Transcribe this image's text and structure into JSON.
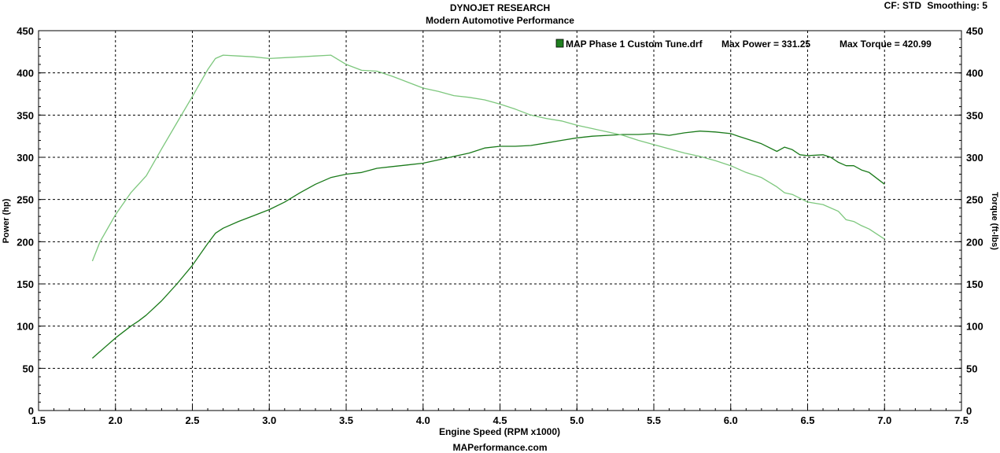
{
  "header": {
    "title": "DYNOJET RESEARCH",
    "subtitle": "Modern Automotive Performance",
    "cf_label": "CF: STD",
    "smoothing_label": "Smoothing: 5"
  },
  "footer": {
    "text": "MAPerformance.com"
  },
  "colors": {
    "power": "#1a7a1a",
    "torque": "#7dc77d",
    "legend_swatch": "#1f7f1f"
  },
  "legend": {
    "file": "MAP Phase 1 Custom Tune.drf",
    "max_power": "Max Power = 331.25",
    "max_torque": "Max Torque = 420.99"
  },
  "chart_data": {
    "type": "line",
    "xlabel": "Engine Speed (RPM x1000)",
    "ylabel": "Power (hp)",
    "y2label": "Torque (ft-lbs)",
    "xlim": [
      1.5,
      7.5
    ],
    "ylim": [
      0,
      450
    ],
    "y2lim": [
      0,
      450
    ],
    "xticks": [
      "1.5",
      "2.0",
      "2.5",
      "3.0",
      "3.5",
      "4.0",
      "4.5",
      "5.0",
      "5.5",
      "6.0",
      "6.5",
      "7.0",
      "7.5"
    ],
    "yticks": [
      "0",
      "50",
      "100",
      "150",
      "200",
      "250",
      "300",
      "350",
      "400",
      "450"
    ],
    "grid": true,
    "legend_position": "top-right",
    "series": [
      {
        "name": "MAP Phase 1 Custom Tune.drf",
        "quantity": "power",
        "x": [
          1.85,
          1.9,
          2.0,
          2.1,
          2.15,
          2.2,
          2.3,
          2.4,
          2.5,
          2.6,
          2.65,
          2.7,
          2.8,
          2.9,
          3.0,
          3.1,
          3.2,
          3.3,
          3.4,
          3.5,
          3.6,
          3.7,
          3.8,
          3.9,
          4.0,
          4.1,
          4.2,
          4.3,
          4.4,
          4.5,
          4.6,
          4.7,
          4.8,
          4.9,
          5.0,
          5.1,
          5.2,
          5.3,
          5.4,
          5.5,
          5.6,
          5.7,
          5.8,
          5.9,
          6.0,
          6.05,
          6.1,
          6.2,
          6.3,
          6.35,
          6.4,
          6.45,
          6.5,
          6.6,
          6.65,
          6.7,
          6.75,
          6.8,
          6.85,
          6.9,
          7.0
        ],
        "values": [
          62,
          70,
          86,
          100,
          106,
          113,
          130,
          150,
          172,
          198,
          210,
          216,
          224,
          231,
          238,
          247,
          258,
          268,
          276,
          280,
          282,
          287,
          289,
          291,
          293,
          297,
          301,
          305,
          311,
          313,
          313,
          314,
          317,
          320,
          323,
          325,
          326,
          327,
          327,
          328,
          326,
          329,
          331,
          330,
          328,
          325,
          322,
          316,
          307,
          312,
          309,
          303,
          302,
          303,
          300,
          294,
          290,
          290,
          285,
          282,
          268
        ]
      },
      {
        "name": "MAP Phase 1 Custom Tune.drf",
        "quantity": "torque",
        "x": [
          1.85,
          1.9,
          2.0,
          2.1,
          2.2,
          2.3,
          2.4,
          2.5,
          2.6,
          2.65,
          2.7,
          2.8,
          2.9,
          3.0,
          3.1,
          3.2,
          3.3,
          3.4,
          3.5,
          3.6,
          3.7,
          3.8,
          3.9,
          4.0,
          4.1,
          4.2,
          4.3,
          4.4,
          4.5,
          4.6,
          4.7,
          4.8,
          4.9,
          5.0,
          5.1,
          5.2,
          5.3,
          5.4,
          5.5,
          5.6,
          5.7,
          5.8,
          5.9,
          6.0,
          6.1,
          6.2,
          6.3,
          6.35,
          6.4,
          6.5,
          6.6,
          6.7,
          6.75,
          6.8,
          6.85,
          6.9,
          7.0
        ],
        "values": [
          177,
          200,
          232,
          258,
          278,
          310,
          341,
          372,
          404,
          417,
          421,
          420,
          419,
          417,
          418,
          419,
          420,
          421,
          410,
          403,
          402,
          396,
          389,
          382,
          378,
          373,
          371,
          368,
          363,
          357,
          350,
          346,
          343,
          338,
          334,
          330,
          326,
          320,
          315,
          310,
          305,
          301,
          296,
          290,
          282,
          276,
          265,
          258,
          256,
          247,
          244,
          236,
          226,
          224,
          219,
          215,
          203
        ]
      }
    ]
  }
}
